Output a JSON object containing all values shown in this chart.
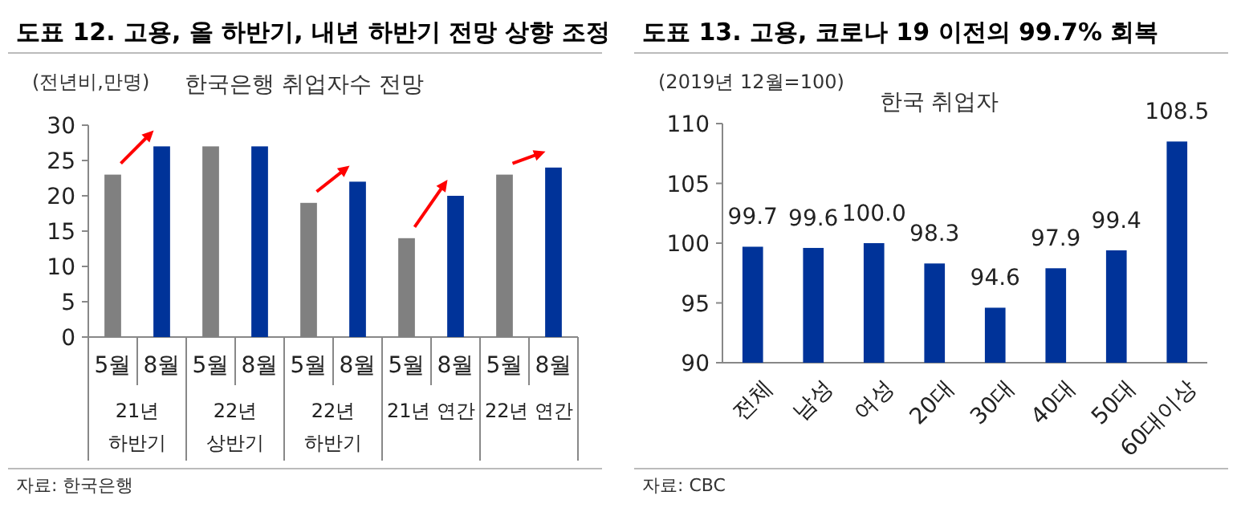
{
  "chart_data": [
    {
      "type": "bar",
      "title": "도표 12.  고용, 올 하반기, 내년 하반기 전망 상향 조정",
      "subtitle": "한국은행 취업자수 전망",
      "ylabel": "(전년비,만명)",
      "categories": [
        "5월",
        "8월",
        "5월",
        "8월",
        "5월",
        "8월",
        "5월",
        "8월",
        "5월",
        "8월"
      ],
      "values": [
        23,
        27,
        27,
        27,
        19,
        22,
        14,
        20,
        23,
        24
      ],
      "colors": [
        "#808080",
        "#003399",
        "#808080",
        "#003399",
        "#808080",
        "#003399",
        "#808080",
        "#003399",
        "#808080",
        "#003399"
      ],
      "ylim": [
        0,
        30
      ],
      "yticks": [
        0,
        5,
        10,
        15,
        20,
        25,
        30
      ],
      "grid": false,
      "annotations": [
        "21년\n하반기",
        "22년\n상반기",
        "22년\n하반기",
        "21년 연간",
        "22년 연간",
        "자료: 한국은행"
      ]
    },
    {
      "type": "bar",
      "title": "도표 13.  고용, 코로나 19 이전의 99.7% 회복",
      "subtitle": "한국 취업자",
      "ylabel": "(2019년 12월=100)",
      "categories": [
        "전체",
        "남성",
        "여성",
        "20대",
        "30대",
        "40대",
        "50대",
        "60대이상"
      ],
      "values": [
        99.7,
        99.6,
        100.0,
        98.3,
        94.6,
        97.9,
        99.4,
        108.5
      ],
      "value_labels": [
        "99.7",
        "99.6",
        "100.0",
        "98.3",
        "94.6",
        "97.9",
        "99.4",
        "108.5"
      ],
      "colors": [
        "#003399",
        "#003399",
        "#003399",
        "#003399",
        "#003399",
        "#003399",
        "#003399",
        "#003399"
      ],
      "ylim": [
        90,
        110
      ],
      "yticks": [
        90,
        95,
        100,
        105,
        110
      ],
      "grid": false,
      "annotations": [
        "자료: CBC"
      ]
    }
  ]
}
